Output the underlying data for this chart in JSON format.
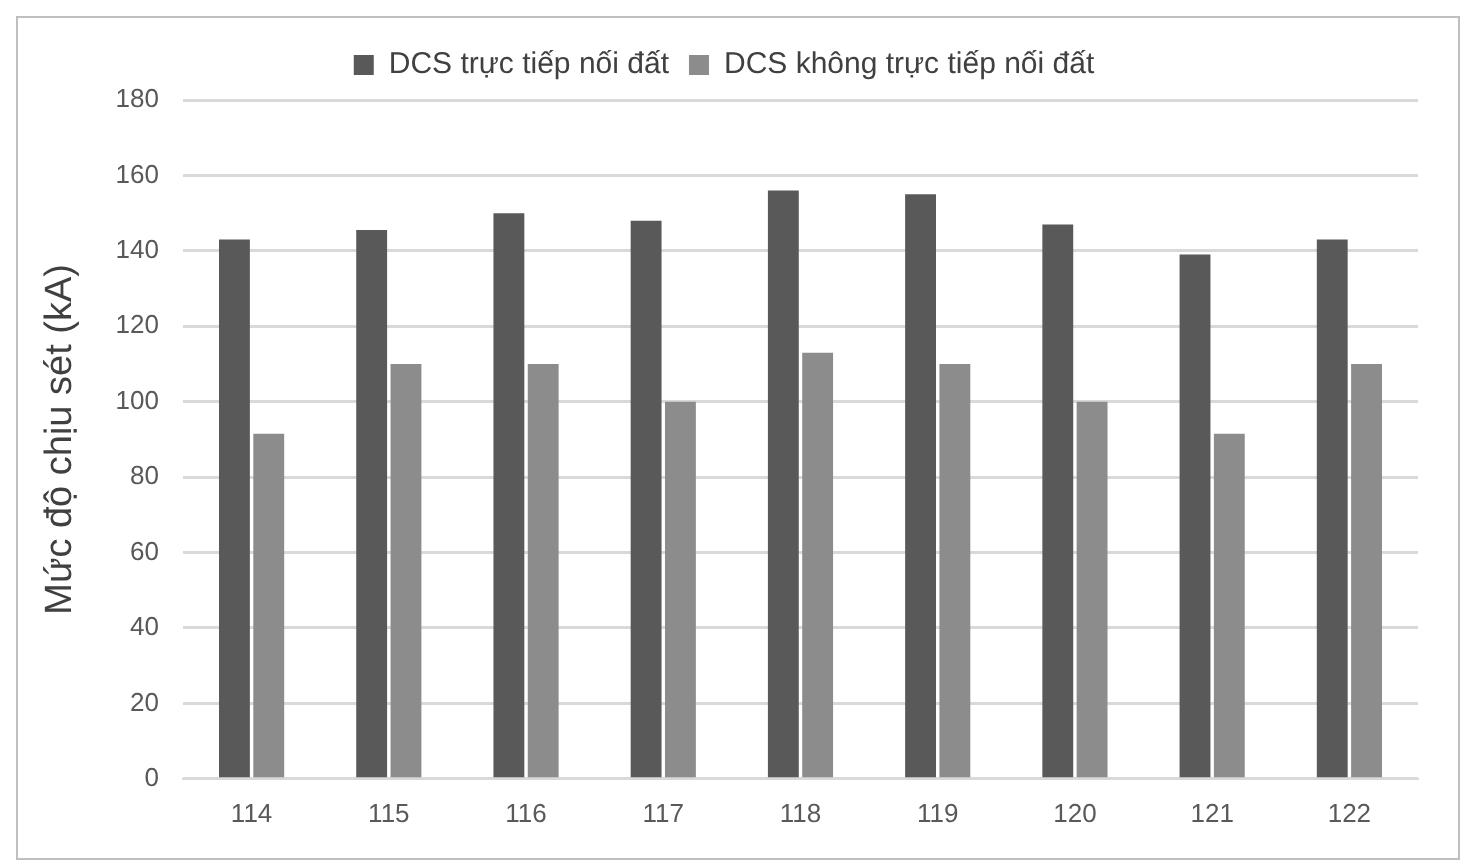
{
  "chart_data": {
    "type": "bar",
    "ylabel": "Mức độ chịu sét (kA)",
    "categories": [
      "114",
      "115",
      "116",
      "117",
      "118",
      "119",
      "120",
      "121",
      "122"
    ],
    "series": [
      {
        "name": "DCS trực tiếp nối đất",
        "color": "#595959",
        "values": [
          143,
          145.5,
          150,
          148,
          156,
          155,
          147,
          139,
          143
        ]
      },
      {
        "name": "DCS không trực tiếp nối đất",
        "color": "#8c8c8c",
        "values": [
          91.5,
          110,
          110,
          100,
          113,
          110,
          100,
          91.5,
          110
        ]
      }
    ],
    "ylim": [
      0,
      180
    ],
    "yticks": [
      0,
      20,
      40,
      60,
      80,
      100,
      120,
      140,
      160,
      180
    ],
    "grid": "y",
    "legend": "top"
  }
}
